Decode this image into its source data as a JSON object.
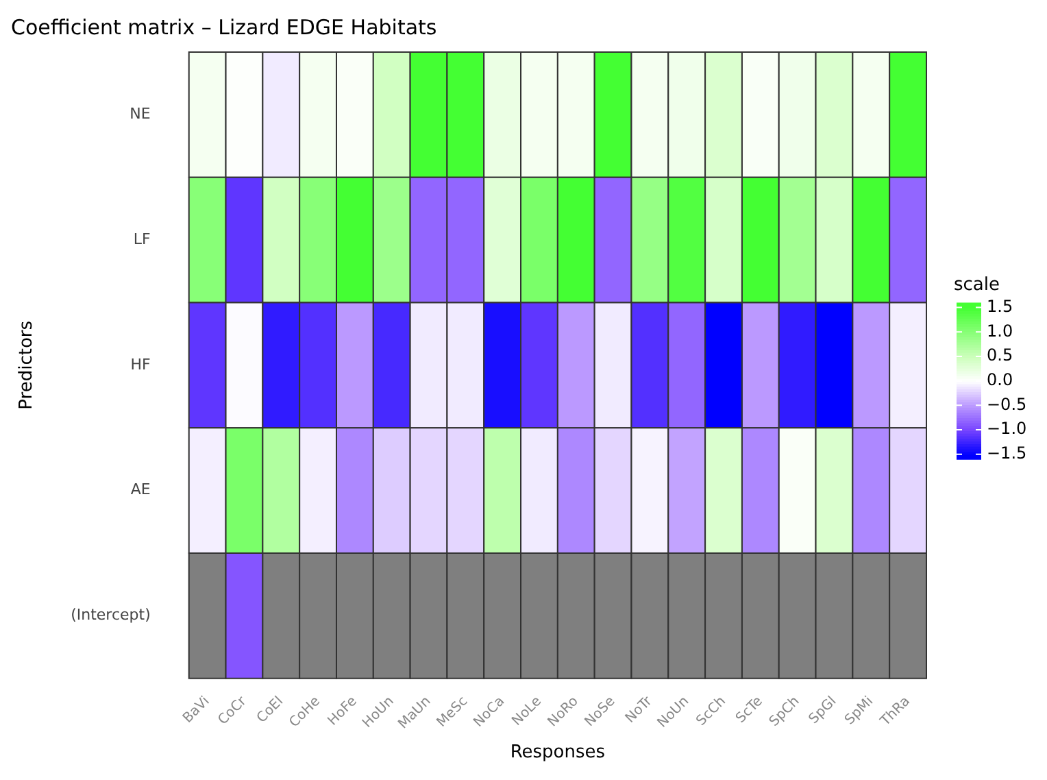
{
  "chart_data": {
    "type": "heatmap",
    "title": "Coefficient matrix – Lizard EDGE Habitats",
    "xlabel": "Responses",
    "ylabel": "Predictors",
    "clabel": "scale",
    "categories": [
      "BaVi",
      "CoCr",
      "CoEl",
      "CoHe",
      "HoFe",
      "HoUn",
      "MaUn",
      "MeSc",
      "NoCa",
      "NoLe",
      "NoRo",
      "NoSe",
      "NoTr",
      "NoUn",
      "ScCh",
      "ScTe",
      "SpCh",
      "SpGl",
      "SpMi",
      "ThRa"
    ],
    "y_categories": [
      "NE",
      "LF",
      "HF",
      "AE",
      "(Intercept)"
    ],
    "cells": [
      [
        0.1,
        0.02,
        -0.1,
        0.1,
        0.05,
        0.45,
        1.5,
        1.5,
        0.2,
        0.1,
        0.1,
        1.5,
        0.1,
        0.15,
        0.35,
        0.06,
        0.15,
        0.35,
        0.1,
        1.5
      ],
      [
        1.0,
        -1.1,
        0.45,
        1.0,
        1.5,
        0.85,
        -0.8,
        -0.8,
        0.3,
        1.1,
        1.5,
        -0.8,
        0.9,
        1.4,
        0.4,
        1.5,
        0.8,
        0.4,
        1.5,
        -0.8
      ],
      [
        -1.1,
        -0.02,
        -1.3,
        -1.15,
        -0.5,
        -1.2,
        -0.1,
        -0.1,
        -1.4,
        -1.1,
        -0.5,
        -0.1,
        -1.15,
        -0.8,
        -1.6,
        -0.5,
        -1.3,
        -1.6,
        -0.5,
        -0.08
      ],
      [
        -0.08,
        1.1,
        0.7,
        -0.08,
        -0.6,
        -0.25,
        -0.2,
        -0.2,
        0.6,
        -0.1,
        -0.6,
        -0.2,
        -0.06,
        -0.45,
        0.35,
        -0.6,
        0.05,
        0.35,
        -0.6,
        -0.2
      ],
      [
        null,
        -0.9,
        null,
        null,
        null,
        null,
        null,
        null,
        null,
        null,
        null,
        null,
        null,
        null,
        null,
        null,
        null,
        null,
        null,
        null
      ]
    ],
    "clim": [
      -1.6,
      1.6
    ],
    "cticks": [
      {
        "value": -1.5,
        "label": "−1.5"
      },
      {
        "value": -1.0,
        "label": "−1.0"
      },
      {
        "value": -0.5,
        "label": "−0.5"
      },
      {
        "value": 0,
        "label": "0.0"
      },
      {
        "value": 0.5,
        "label": "0.5"
      },
      {
        "value": 1.0,
        "label": "1.0"
      },
      {
        "value": 1.5,
        "label": "1.5"
      }
    ]
  }
}
